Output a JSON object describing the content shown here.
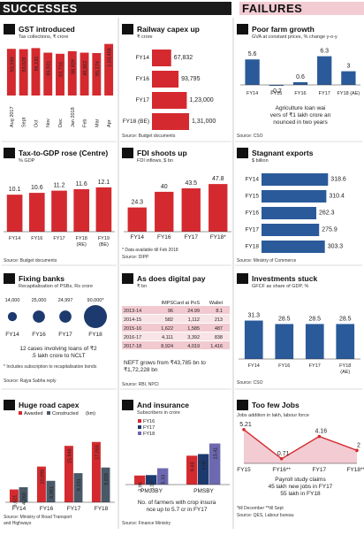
{
  "header": {
    "left": "SUCCESSES",
    "right": "FAILURES"
  },
  "colors": {
    "red": "#d42a2f",
    "blue": "#2a5a9a",
    "navy": "#1d3a6e",
    "gray": "#4a5968",
    "purple": "#6d68b0"
  },
  "chart_data": [
    {
      "id": "gst",
      "type": "bar",
      "title": "GST introduced",
      "subtitle": "Tax collections, ₹ crore",
      "categories": [
        "Aug 2017",
        "Sept",
        "Oct",
        "Nov",
        "Dec",
        "Jan 2018",
        "Feb",
        "Mar",
        "Apr"
      ],
      "values": [
        93590,
        93029,
        95131,
        85931,
        83716,
        88929,
        85962,
        85174,
        103458
      ],
      "value_labels": [
        "93,590",
        "93,029",
        "95,131",
        "85,931",
        "83,716",
        "88,929",
        "85,962",
        "85,174",
        "1,03,458"
      ],
      "ylim": [
        0,
        110000
      ]
    },
    {
      "id": "railway",
      "type": "bar",
      "orientation": "horizontal",
      "title": "Railway capex up",
      "subtitle": "₹ crore",
      "categories": [
        "FY14",
        "FY16",
        "FY17",
        "FY18 (BE)"
      ],
      "values": [
        67832,
        93795,
        123000,
        131000
      ],
      "value_labels": [
        "67,832",
        "93,795",
        "1,23,000",
        "1,31,000"
      ],
      "source": "Source: Budget documents"
    },
    {
      "id": "farm",
      "type": "bar",
      "title": "Poor farm growth",
      "subtitle": "GVA at constant prices, % change y-o-y",
      "categories": [
        "FY14",
        "FY15",
        "FY16",
        "FY17",
        "FY18 (AE)"
      ],
      "values": [
        5.6,
        -0.2,
        0.6,
        6.3,
        3
      ],
      "value_labels": [
        "5.6",
        "-0.2",
        "0.6",
        "6.3",
        "3"
      ],
      "note": "Agriculture loan waivers of ₹1 lakh crore announced in two years",
      "source": "Source: CSO"
    },
    {
      "id": "taxgdp",
      "type": "bar",
      "title": "Tax-to-GDP rose (Centre)",
      "subtitle": "% GDP",
      "categories": [
        "FY14",
        "FY16",
        "FY17",
        "FY18 (RE)",
        "FY19 (BE)"
      ],
      "values": [
        10.1,
        10.6,
        11.2,
        11.6,
        12.1
      ],
      "value_labels": [
        "10.1",
        "10.6",
        "11.2",
        "11.6",
        "12.1"
      ],
      "ylim": [
        0,
        14
      ],
      "source": "Source: Budget documents"
    },
    {
      "id": "fdi",
      "type": "bar",
      "title": "FDI shoots up",
      "subtitle": "FDI inflows, $ bn",
      "categories": [
        "FY14",
        "FY16",
        "FY17",
        "FY18*"
      ],
      "values": [
        24.3,
        40,
        43.5,
        47.8
      ],
      "value_labels": [
        "24.3",
        "40",
        "43.5",
        "47.8"
      ],
      "ylim": [
        0,
        55
      ],
      "note": "* Data available till Feb 2018",
      "source": "Source: DIPP"
    },
    {
      "id": "exports",
      "type": "bar",
      "orientation": "horizontal",
      "title": "Stagnant exports",
      "subtitle": "$ billion",
      "categories": [
        "FY14",
        "FY15",
        "FY16",
        "FY17",
        "FY18"
      ],
      "values": [
        318.6,
        310.4,
        262.3,
        275.9,
        303.3
      ],
      "value_labels": [
        "318.6",
        "310.4",
        "262.3",
        "275.9",
        "303.3"
      ],
      "source": "Source: Ministry of Commerce"
    },
    {
      "id": "banks",
      "type": "bubble",
      "title": "Fixing banks",
      "subtitle": "Recapitalisation of PSBs, Rs crore",
      "categories": [
        "FY14",
        "FY16",
        "FY17",
        "FY18"
      ],
      "values": [
        14000,
        25000,
        24997,
        90000
      ],
      "value_labels": [
        "14,000",
        "25,000",
        "24,997",
        "90,000*"
      ],
      "note": "12 cases involving loans of ₹2.5 lakh crore to NCLT",
      "footnote": "* Includes subscription to recapitalisation bonds",
      "source": "Source: Rajya Sabha reply"
    },
    {
      "id": "digital",
      "type": "table",
      "title": "As does digital pay",
      "subtitle": "₹ bn",
      "columns": [
        "",
        "IMPS",
        "Card at PoS",
        "Wallet"
      ],
      "rows": [
        [
          "2013-14",
          "96",
          "24.99",
          "8.1"
        ],
        [
          "2014-15",
          "582",
          "1,112",
          "213"
        ],
        [
          "2015-16",
          "1,622",
          "1,585",
          "487"
        ],
        [
          "2016-17",
          "4,111",
          "3,392",
          "838"
        ],
        [
          "2017-18",
          "8,924",
          "4,019",
          "1,416"
        ]
      ],
      "note": "NEFT grows from ₹43,785 bn to ₹1,72,228 bn",
      "source": "Source: RBI, NPCI"
    },
    {
      "id": "investments",
      "type": "bar",
      "title": "Investments stuck",
      "subtitle": "GFCF as share of GDP, %",
      "categories": [
        "FY14",
        "FY16",
        "FY17",
        "FY18 (AE)"
      ],
      "values": [
        31.3,
        28.5,
        28.5,
        28.5
      ],
      "value_labels": [
        "31.3",
        "28.5",
        "28.5",
        "28.5"
      ],
      "ylim": [
        0,
        36
      ],
      "source": "Source: CSO"
    },
    {
      "id": "roads",
      "type": "bar",
      "title": "Huge road capex",
      "legend": [
        "Awarded",
        "Constructed"
      ],
      "legend_unit": "(km)",
      "categories": [
        "FY14",
        "FY16",
        "FY17",
        "FY18"
      ],
      "series": [
        {
          "name": "Awarded",
          "values": [
            3621,
            10098,
            15948,
            17055
          ]
        },
        {
          "name": "Constructed",
          "values": [
            4260,
            6061,
            8231,
            9829
          ]
        }
      ],
      "value_labels": [
        [
          "3,621",
          "10,098",
          "15,948",
          "17,055"
        ],
        [
          "4,260",
          "6,061",
          "8,231",
          "9,829"
        ]
      ],
      "ylim": [
        0,
        19000
      ],
      "source": "Source: Ministry of Road Transport and Highways"
    },
    {
      "id": "insurance",
      "type": "bar",
      "title": "And insurance",
      "subtitle": "Subscribers in crore",
      "categories": [
        "PMJJBY",
        "PMSBY"
      ],
      "series": [
        {
          "name": "FY16",
          "values": [
            2.96,
            9.43
          ]
        },
        {
          "name": "FY17",
          "values": [
            3.1,
            9.96
          ]
        },
        {
          "name": "FY18",
          "values": [
            5.33,
            13.41
          ]
        }
      ],
      "value_labels": [
        [
          "2.96",
          "9.43"
        ],
        [
          "3.10",
          "9.96"
        ],
        [
          "5.33",
          "13.41"
        ]
      ],
      "ylim": [
        0,
        15
      ],
      "note": "No. of farmers with crop insurance up to 5.7 cr in FY17",
      "source": "Source: Finance Ministry"
    },
    {
      "id": "jobs",
      "type": "line",
      "title": "Too few Jobs",
      "subtitle": "Jobs addition in lakh, labour force",
      "categories": [
        "FY15",
        "FY16**",
        "FY17",
        "FY18***"
      ],
      "values": [
        5.21,
        0.71,
        4.16,
        2
      ],
      "value_labels": [
        "5.21",
        "0.71",
        "4.16",
        "2"
      ],
      "ylim": [
        0,
        6
      ],
      "note_line1": "Payroll study claims",
      "note_line2": "45 lakh new jobs in FY17",
      "note_line3": "55 lakh in FY18",
      "footnote": "*till December **till Sept",
      "source": "Source: QES, Labour bureau"
    }
  ]
}
